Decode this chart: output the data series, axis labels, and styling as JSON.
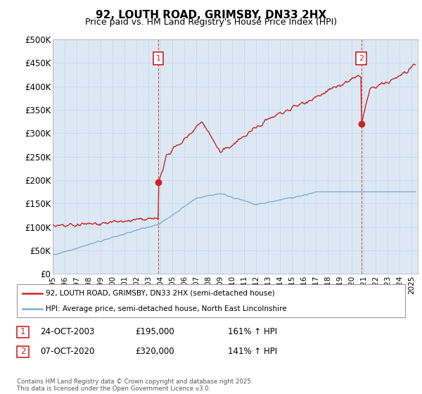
{
  "title": "92, LOUTH ROAD, GRIMSBY, DN33 2HX",
  "subtitle": "Price paid vs. HM Land Registry's House Price Index (HPI)",
  "ylim": [
    0,
    500000
  ],
  "yticks": [
    0,
    50000,
    100000,
    150000,
    200000,
    250000,
    300000,
    350000,
    400000,
    450000,
    500000
  ],
  "ytick_labels": [
    "£0",
    "£50K",
    "£100K",
    "£150K",
    "£200K",
    "£250K",
    "£300K",
    "£350K",
    "£400K",
    "£450K",
    "£500K"
  ],
  "xlim_start": 1995.0,
  "xlim_end": 2025.5,
  "hpi_color": "#7aaed6",
  "price_color": "#cc2222",
  "plot_bg_color": "#dce9f5",
  "marker1_date": 2003.81,
  "marker1_price": 195000,
  "marker2_date": 2020.77,
  "marker2_price": 320000,
  "legend_label1": "92, LOUTH ROAD, GRIMSBY, DN33 2HX (semi-detached house)",
  "legend_label2": "HPI: Average price, semi-detached house, North East Lincolnshire",
  "annotation1_label": "1",
  "annotation2_label": "2",
  "table_row1": [
    "1",
    "24-OCT-2003",
    "£195,000",
    "161% ↑ HPI"
  ],
  "table_row2": [
    "2",
    "07-OCT-2020",
    "£320,000",
    "141% ↑ HPI"
  ],
  "footer": "Contains HM Land Registry data © Crown copyright and database right 2025.\nThis data is licensed under the Open Government Licence v3.0.",
  "background_color": "#ffffff",
  "grid_color": "#c8d8e8"
}
